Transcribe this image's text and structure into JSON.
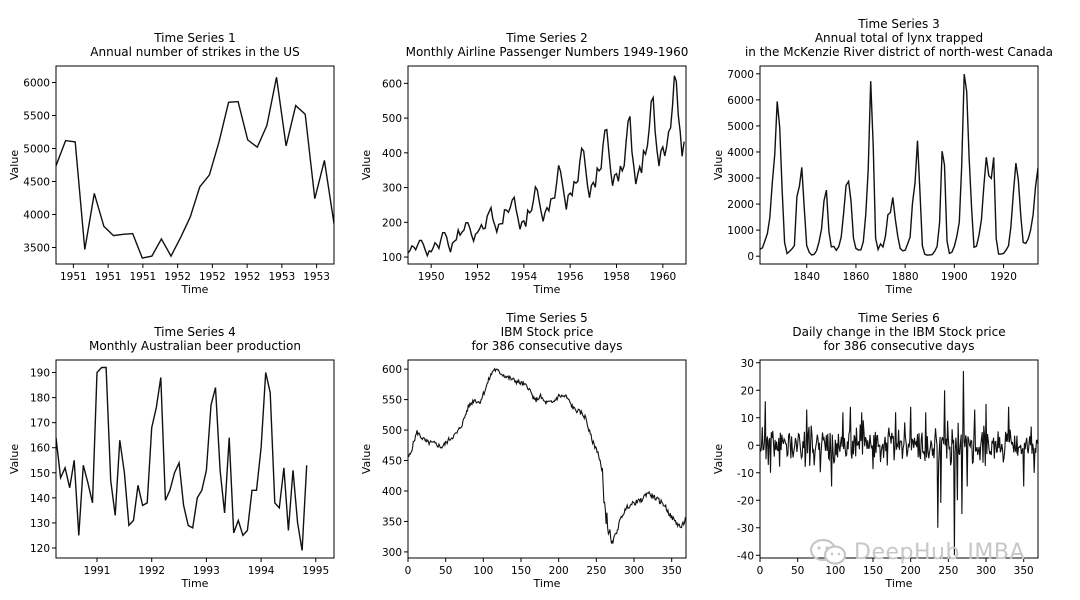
{
  "chart_data": [
    {
      "type": "line",
      "title": "Time Series 1",
      "subtitle": [
        "Annual number of strikes in the US"
      ],
      "xlabel": "Time",
      "ylabel": "Value",
      "xtick_labels": [
        "1951",
        "1951",
        "1951",
        "1952",
        "1952",
        "1952",
        "1953",
        "1953"
      ],
      "xlim": [
        0,
        29
      ],
      "ylim": [
        3250,
        6250
      ],
      "yticks": [
        3500,
        4000,
        4500,
        5000,
        5500,
        6000
      ],
      "x": [
        0,
        1,
        2,
        3,
        4,
        5,
        6,
        7,
        8,
        9,
        10,
        11,
        12,
        13,
        14,
        15,
        16,
        17,
        18,
        19,
        20,
        21,
        22,
        23,
        24,
        25,
        26,
        27,
        28,
        29
      ],
      "values": [
        4740,
        5120,
        5100,
        3470,
        4320,
        3820,
        3680,
        3700,
        3710,
        3340,
        3370,
        3630,
        3370,
        3650,
        3960,
        4420,
        4600,
        5100,
        5700,
        5710,
        5130,
        5020,
        5350,
        6080,
        5040,
        5650,
        5520,
        4240,
        4820,
        3860
      ]
    },
    {
      "type": "line",
      "title": "Time Series 2",
      "subtitle": [
        "Monthly Airline Passenger Numbers 1949-1960"
      ],
      "xlabel": "Time",
      "ylabel": "Value",
      "xlim": [
        1949,
        1961
      ],
      "ylim": [
        80,
        650
      ],
      "xticks": [
        1950,
        1952,
        1954,
        1956,
        1958,
        1960
      ],
      "yticks": [
        100,
        200,
        300,
        400,
        500,
        600
      ],
      "x_start": 1949,
      "x_step": 0.0833333,
      "values": [
        112,
        118,
        132,
        129,
        121,
        135,
        148,
        148,
        136,
        119,
        104,
        118,
        115,
        126,
        141,
        135,
        125,
        149,
        170,
        170,
        158,
        133,
        114,
        140,
        145,
        150,
        178,
        163,
        172,
        178,
        199,
        199,
        184,
        162,
        146,
        166,
        171,
        180,
        193,
        181,
        183,
        218,
        230,
        242,
        209,
        191,
        172,
        194,
        196,
        196,
        236,
        235,
        229,
        243,
        264,
        272,
        237,
        211,
        180,
        201,
        204,
        188,
        235,
        227,
        234,
        264,
        302,
        293,
        259,
        229,
        203,
        229,
        242,
        233,
        267,
        269,
        270,
        315,
        364,
        347,
        312,
        274,
        237,
        278,
        284,
        277,
        317,
        313,
        318,
        374,
        413,
        405,
        355,
        306,
        271,
        306,
        315,
        301,
        356,
        348,
        355,
        422,
        465,
        467,
        404,
        347,
        305,
        336,
        340,
        318,
        362,
        348,
        363,
        435,
        491,
        505,
        404,
        359,
        310,
        337,
        360,
        342,
        406,
        396,
        420,
        472,
        548,
        559,
        463,
        407,
        362,
        405,
        417,
        391,
        419,
        461,
        472,
        535,
        622,
        606,
        508,
        461,
        390,
        432
      ]
    },
    {
      "type": "line",
      "title": "Time Series 3",
      "subtitle": [
        "Annual total of lynx trapped",
        "in the McKenzie River district of north-west Canada"
      ],
      "xlabel": "Time",
      "ylabel": "Value",
      "xlim": [
        1821,
        1934
      ],
      "ylim": [
        -300,
        7300
      ],
      "xticks": [
        1840,
        1860,
        1880,
        1900,
        1920
      ],
      "yticks": [
        0,
        1000,
        2000,
        3000,
        4000,
        5000,
        6000,
        7000
      ],
      "x_start": 1821,
      "x_step": 1,
      "values": [
        269,
        321,
        585,
        871,
        1475,
        2821,
        3928,
        5943,
        4950,
        2577,
        523,
        98,
        184,
        279,
        409,
        2285,
        2685,
        3409,
        1824,
        409,
        151,
        45,
        68,
        213,
        546,
        1033,
        2129,
        2536,
        957,
        361,
        377,
        225,
        360,
        731,
        1638,
        2725,
        2871,
        2119,
        684,
        299,
        236,
        245,
        552,
        1623,
        3311,
        6721,
        4254,
        687,
        255,
        473,
        358,
        784,
        1594,
        1676,
        2251,
        1426,
        756,
        299,
        201,
        229,
        469,
        736,
        2042,
        2811,
        4431,
        2511,
        389,
        73,
        39,
        49,
        59,
        188,
        377,
        1292,
        4031,
        3495,
        587,
        105,
        153,
        387,
        758,
        1307,
        3465,
        6991,
        6313,
        3794,
        1836,
        345,
        382,
        808,
        1388,
        2713,
        3800,
        3091,
        2985,
        3790,
        674,
        81,
        80,
        108,
        229,
        399,
        1132,
        2432,
        3574,
        2935,
        1537,
        529,
        485,
        662,
        1000,
        1590,
        2657,
        3396
      ]
    },
    {
      "type": "line",
      "title": "Time Series 4",
      "subtitle": [
        "Monthly Australian beer production"
      ],
      "xlabel": "Time",
      "ylabel": "Value",
      "xlim": [
        1990.25,
        1995.333
      ],
      "ylim": [
        116,
        195
      ],
      "xticks": [
        1991,
        1992,
        1993,
        1994,
        1995
      ],
      "xtick_labels": [
        "1991",
        "1992",
        "1993",
        "1994",
        "1995"
      ],
      "yticks": [
        120,
        130,
        140,
        150,
        160,
        170,
        180,
        190
      ],
      "x_start": 1990.25,
      "x_step": 0.0833333,
      "values": [
        164,
        148,
        152,
        144,
        155,
        125,
        153,
        146,
        138,
        190,
        192,
        192,
        147,
        133,
        163,
        150,
        129,
        131,
        145,
        137,
        138,
        168,
        176,
        188,
        139,
        143,
        150,
        154,
        137,
        129,
        128,
        140,
        143,
        151,
        177,
        184,
        151,
        134,
        164,
        126,
        131,
        125,
        127,
        143,
        143,
        160,
        190,
        182,
        138,
        136,
        152,
        127,
        151,
        130,
        119,
        153
      ]
    },
    {
      "type": "line",
      "title": "Time Series 5",
      "subtitle": [
        "IBM Stock price",
        "for 386 consecutive days"
      ],
      "xlabel": "Time",
      "ylabel": "Value",
      "xlim": [
        0,
        369
      ],
      "ylim": [
        290,
        615
      ],
      "xticks": [
        0,
        50,
        100,
        150,
        200,
        250,
        300,
        350
      ],
      "yticks": [
        300,
        350,
        400,
        450,
        500,
        550,
        600
      ],
      "seed": 5,
      "anchors": [
        [
          0,
          455
        ],
        [
          3,
          460
        ],
        [
          8,
          482
        ],
        [
          12,
          497
        ],
        [
          18,
          488
        ],
        [
          25,
          480
        ],
        [
          35,
          478
        ],
        [
          45,
          472
        ],
        [
          55,
          485
        ],
        [
          65,
          495
        ],
        [
          72,
          510
        ],
        [
          80,
          538
        ],
        [
          88,
          550
        ],
        [
          95,
          545
        ],
        [
          102,
          565
        ],
        [
          108,
          585
        ],
        [
          114,
          600
        ],
        [
          120,
          596
        ],
        [
          130,
          588
        ],
        [
          140,
          582
        ],
        [
          150,
          577
        ],
        [
          160,
          570
        ],
        [
          168,
          548
        ],
        [
          176,
          555
        ],
        [
          182,
          545
        ],
        [
          192,
          545
        ],
        [
          200,
          556
        ],
        [
          210,
          555
        ],
        [
          220,
          535
        ],
        [
          230,
          528
        ],
        [
          236,
          520
        ],
        [
          240,
          500
        ],
        [
          246,
          478
        ],
        [
          252,
          465
        ],
        [
          258,
          425
        ],
        [
          262,
          365
        ],
        [
          266,
          340
        ],
        [
          270,
          310
        ],
        [
          276,
          330
        ],
        [
          284,
          360
        ],
        [
          292,
          375
        ],
        [
          300,
          380
        ],
        [
          310,
          385
        ],
        [
          318,
          398
        ],
        [
          324,
          392
        ],
        [
          332,
          385
        ],
        [
          340,
          378
        ],
        [
          348,
          360
        ],
        [
          356,
          348
        ],
        [
          363,
          340
        ],
        [
          369,
          355
        ]
      ],
      "noise": 4,
      "noise_extra": [
        [
          255,
          270,
          14
        ]
      ]
    },
    {
      "type": "line",
      "title": "Time Series 6",
      "subtitle": [
        "Daily change in the IBM Stock price",
        "for 386 consecutive days"
      ],
      "xlabel": "Time",
      "ylabel": "Value",
      "xlim": [
        0,
        369
      ],
      "ylim": [
        -41,
        31
      ],
      "xticks": [
        0,
        50,
        100,
        150,
        200,
        250,
        300,
        350
      ],
      "yticks": [
        -40,
        -30,
        -20,
        -10,
        0,
        10,
        20,
        30
      ],
      "seed": 11,
      "noise": 6,
      "spikes": [
        [
          7,
          16
        ],
        [
          14,
          -10
        ],
        [
          62,
          13
        ],
        [
          95,
          -15
        ],
        [
          110,
          12
        ],
        [
          120,
          14
        ],
        [
          135,
          12
        ],
        [
          180,
          12
        ],
        [
          200,
          14
        ],
        [
          220,
          12
        ],
        [
          236,
          -30
        ],
        [
          240,
          -21
        ],
        [
          245,
          20
        ],
        [
          258,
          -40
        ],
        [
          262,
          -20
        ],
        [
          268,
          -25
        ],
        [
          270,
          27
        ],
        [
          275,
          -15
        ],
        [
          285,
          13
        ],
        [
          300,
          15
        ],
        [
          330,
          14
        ],
        [
          350,
          -15
        ],
        [
          364,
          -10
        ]
      ]
    }
  ],
  "watermark": {
    "text": "DeepHub IMBA",
    "icon": "wechat-icon"
  }
}
